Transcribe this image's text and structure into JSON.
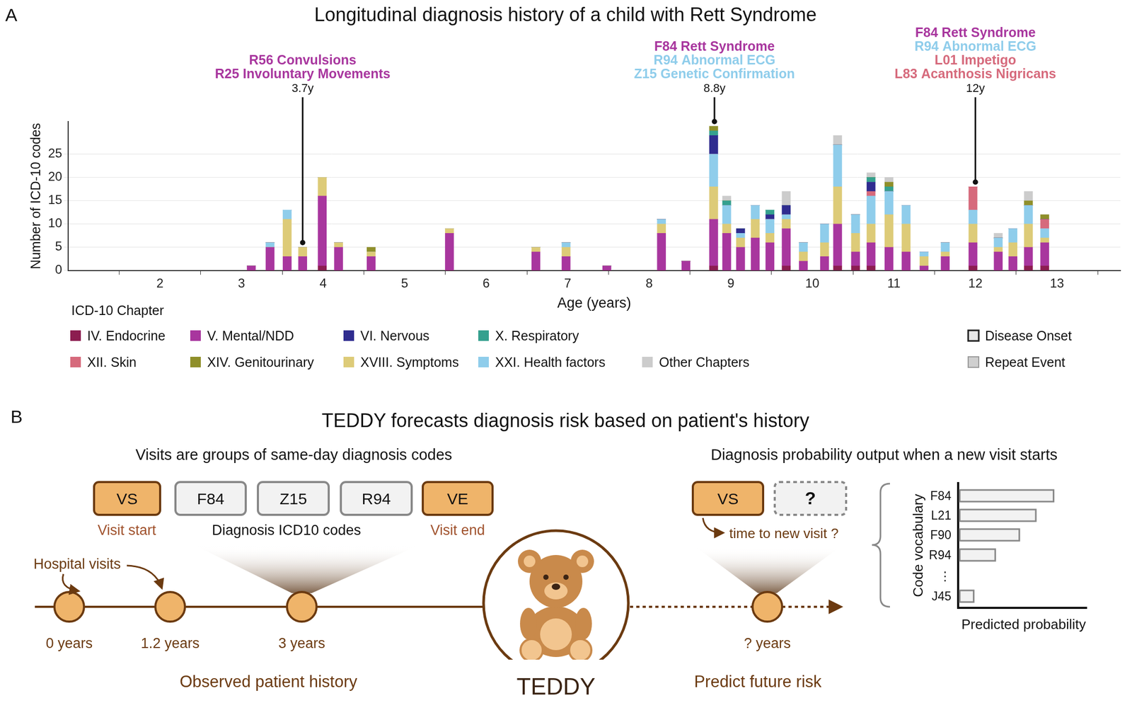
{
  "chart_data": {
    "type": "bar",
    "panel": "A",
    "title": "Longitudinal diagnosis history of a child with Rett Syndrome",
    "x_label": "Age (years)",
    "y_label": "Number of ICD-10 codes",
    "stacked": true,
    "grid": true,
    "legend": "bottom",
    "legend_title": "ICD-10 Chapter",
    "x": [
      3.12,
      3.35,
      3.56,
      3.75,
      3.99,
      4.19,
      4.59,
      5.55,
      6.61,
      6.98,
      7.48,
      8.15,
      8.45,
      8.79,
      8.95,
      9.12,
      9.3,
      9.48,
      9.68,
      9.89,
      10.15,
      10.31,
      10.53,
      10.72,
      10.94,
      11.15,
      11.37,
      11.63,
      11.97,
      12.28,
      12.46,
      12.65,
      12.85
    ],
    "series": [
      {
        "name": "IV. Endocrine",
        "color": "#8c1d50",
        "values": [
          0,
          0,
          0,
          0,
          1,
          0,
          0,
          0,
          0,
          0,
          0,
          0,
          0,
          1,
          0,
          0,
          0,
          0,
          1,
          0,
          0,
          1,
          1,
          1,
          0,
          0,
          0,
          0,
          1,
          0,
          0,
          1,
          1
        ]
      },
      {
        "name": "V. Mental/NDD",
        "color": "#a8369e",
        "values": [
          1,
          5,
          3,
          3,
          15,
          5,
          3,
          8,
          4,
          3,
          1,
          8,
          2,
          10,
          8,
          5,
          7,
          6,
          8,
          2,
          3,
          9,
          3,
          5,
          5,
          4,
          1,
          3,
          5,
          4,
          3,
          4,
          5
        ]
      },
      {
        "name": "VI. Nervous",
        "color": "#2f2c8f",
        "values": [
          0,
          0,
          0,
          0,
          0,
          0,
          0,
          0,
          0,
          0,
          0,
          0,
          0,
          4,
          0,
          1,
          0,
          1,
          2,
          0,
          0,
          0,
          0,
          2,
          0,
          0,
          0,
          0,
          0,
          0,
          0,
          0,
          0
        ]
      },
      {
        "name": "X. Respiratory",
        "color": "#35a08e",
        "values": [
          0,
          0,
          0,
          0,
          0,
          0,
          0,
          0,
          0,
          0,
          0,
          0,
          0,
          1,
          1,
          0,
          0,
          1,
          0,
          0,
          0,
          0,
          0,
          1,
          1,
          0,
          0,
          0,
          0,
          0,
          0,
          0,
          0
        ]
      },
      {
        "name": "XII. Skin",
        "color": "#d66a7c",
        "values": [
          0,
          0,
          0,
          0,
          0,
          0,
          0,
          0,
          0,
          0,
          0,
          0,
          0,
          0,
          0,
          0,
          0,
          0,
          0,
          0,
          0,
          0,
          0,
          1,
          0,
          0,
          0,
          0,
          5,
          0,
          0,
          0,
          2
        ]
      },
      {
        "name": "XIV. Genitourinary",
        "color": "#8f8f2a",
        "values": [
          0,
          0,
          0,
          0,
          0,
          0,
          1,
          0,
          0,
          0,
          0,
          0,
          0,
          1,
          0,
          0,
          0,
          0,
          0,
          0,
          0,
          0,
          0,
          0,
          1,
          0,
          0,
          0,
          0,
          0,
          0,
          1,
          1
        ]
      },
      {
        "name": "XVIII. Symptoms",
        "color": "#ddcb78",
        "values": [
          0,
          0,
          8,
          2,
          4,
          1,
          1,
          1,
          1,
          2,
          0,
          2,
          0,
          7,
          2,
          2,
          4,
          2,
          2,
          2,
          3,
          8,
          4,
          4,
          7,
          6,
          2,
          1,
          4,
          1,
          3,
          5,
          1
        ]
      },
      {
        "name": "XXI. Health factors",
        "color": "#8fcdeb",
        "values": [
          0,
          1,
          2,
          0,
          0,
          0,
          0,
          0,
          0,
          1,
          0,
          1,
          0,
          7,
          4,
          1,
          3,
          3,
          1,
          2,
          4,
          9,
          4,
          6,
          5,
          4,
          1,
          2,
          3,
          2,
          3,
          4,
          2
        ]
      },
      {
        "name": "Other Chapters",
        "color": "#cccccc",
        "values": [
          0,
          0,
          0,
          0,
          0,
          0,
          0,
          0,
          0,
          0,
          0,
          0,
          0,
          0,
          1,
          0,
          0,
          0,
          3,
          0,
          0,
          2,
          0,
          1,
          1,
          0,
          0,
          0,
          0,
          1,
          0,
          2,
          0
        ]
      }
    ],
    "marker_legend": [
      {
        "name": "Disease Onset",
        "color": "#e8e8e8"
      },
      {
        "name": "Repeat Event",
        "color": "#cfcfcf"
      }
    ],
    "xlim": [
      1.41,
      13.24
    ],
    "xticks": [
      2,
      3,
      4,
      5,
      6,
      7,
      8,
      9,
      10,
      11,
      12,
      13
    ],
    "ylim": [
      0,
      32
    ],
    "yticks": [
      0,
      5,
      10,
      15,
      20,
      25
    ],
    "annotations": [
      {
        "x": 3.75,
        "y": 6,
        "label": "3.7y",
        "codes": [
          {
            "text": "R56 Convulsions",
            "color": "#a8369e"
          },
          {
            "text": "R25 Involuntary Movements",
            "color": "#a8369e"
          }
        ]
      },
      {
        "x": 8.8,
        "y": 32,
        "label": "8.8y",
        "codes": [
          {
            "text": "F84 Rett Syndrome",
            "color": "#a8369e"
          },
          {
            "text": "R94 Abnormal ECG",
            "color": "#8fcdeb"
          },
          {
            "text": "Z15 Genetic Confirmation",
            "color": "#8fcdeb"
          }
        ]
      },
      {
        "x": 12.0,
        "y": 19,
        "label": "12y",
        "codes": [
          {
            "text": "F84 Rett Syndrome",
            "color": "#a8369e"
          },
          {
            "text": "R94 Abnormal ECG",
            "color": "#8fcdeb"
          },
          {
            "text": "L01 Impetigo",
            "color": "#d66a7c"
          },
          {
            "text": "L83 Acanthosis Nigricans",
            "color": "#d66a7c"
          }
        ]
      }
    ]
  },
  "diagram": {
    "panel": "B",
    "title": "TEDDY forecasts diagnosis risk based on patient's history",
    "left": {
      "heading": "Visits are groups of same-day diagnosis codes",
      "start": {
        "text": "VS",
        "caption": "Visit start"
      },
      "codes": [
        "F84",
        "Z15",
        "R94"
      ],
      "codes_caption": "Diagnosis ICD10 codes",
      "end": {
        "text": "VE",
        "caption": "Visit end"
      },
      "visits_label": "Hospital visits",
      "timeline": [
        "0 years",
        "1.2 years",
        "3 years"
      ],
      "footer": "Observed patient history"
    },
    "model": "TEDDY",
    "right": {
      "heading": "Diagnosis probability output when a new visit starts",
      "start": "VS",
      "unknown": "?",
      "time_label": "time to new visit ?",
      "future": "? years",
      "footer": "Predict future risk",
      "bars": {
        "y_label": "Code vocabulary",
        "x_label": "Predicted probability",
        "categories": [
          "F84",
          "L21",
          "F90",
          "R94",
          "⋮",
          "J45"
        ],
        "values": [
          0.74,
          0.6,
          0.47,
          0.28,
          null,
          0.11
        ],
        "xlim": [
          0,
          1
        ]
      }
    }
  }
}
